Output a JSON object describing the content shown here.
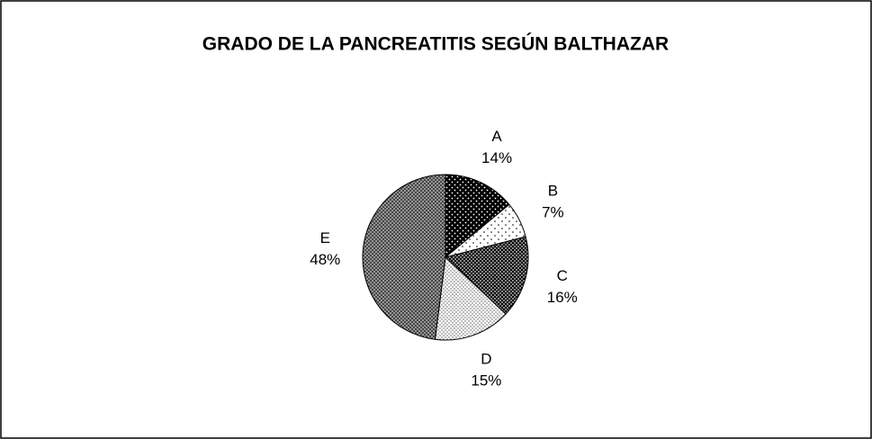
{
  "chart_data": {
    "type": "pie",
    "title": "GRADO DE LA PANCREATITIS SEGÚN BALTHAZAR",
    "categories": [
      "A",
      "B",
      "C",
      "D",
      "E"
    ],
    "values": [
      14,
      7,
      16,
      15,
      48
    ],
    "value_labels": [
      "14%",
      "7%",
      "16%",
      "15%",
      "48%"
    ]
  }
}
